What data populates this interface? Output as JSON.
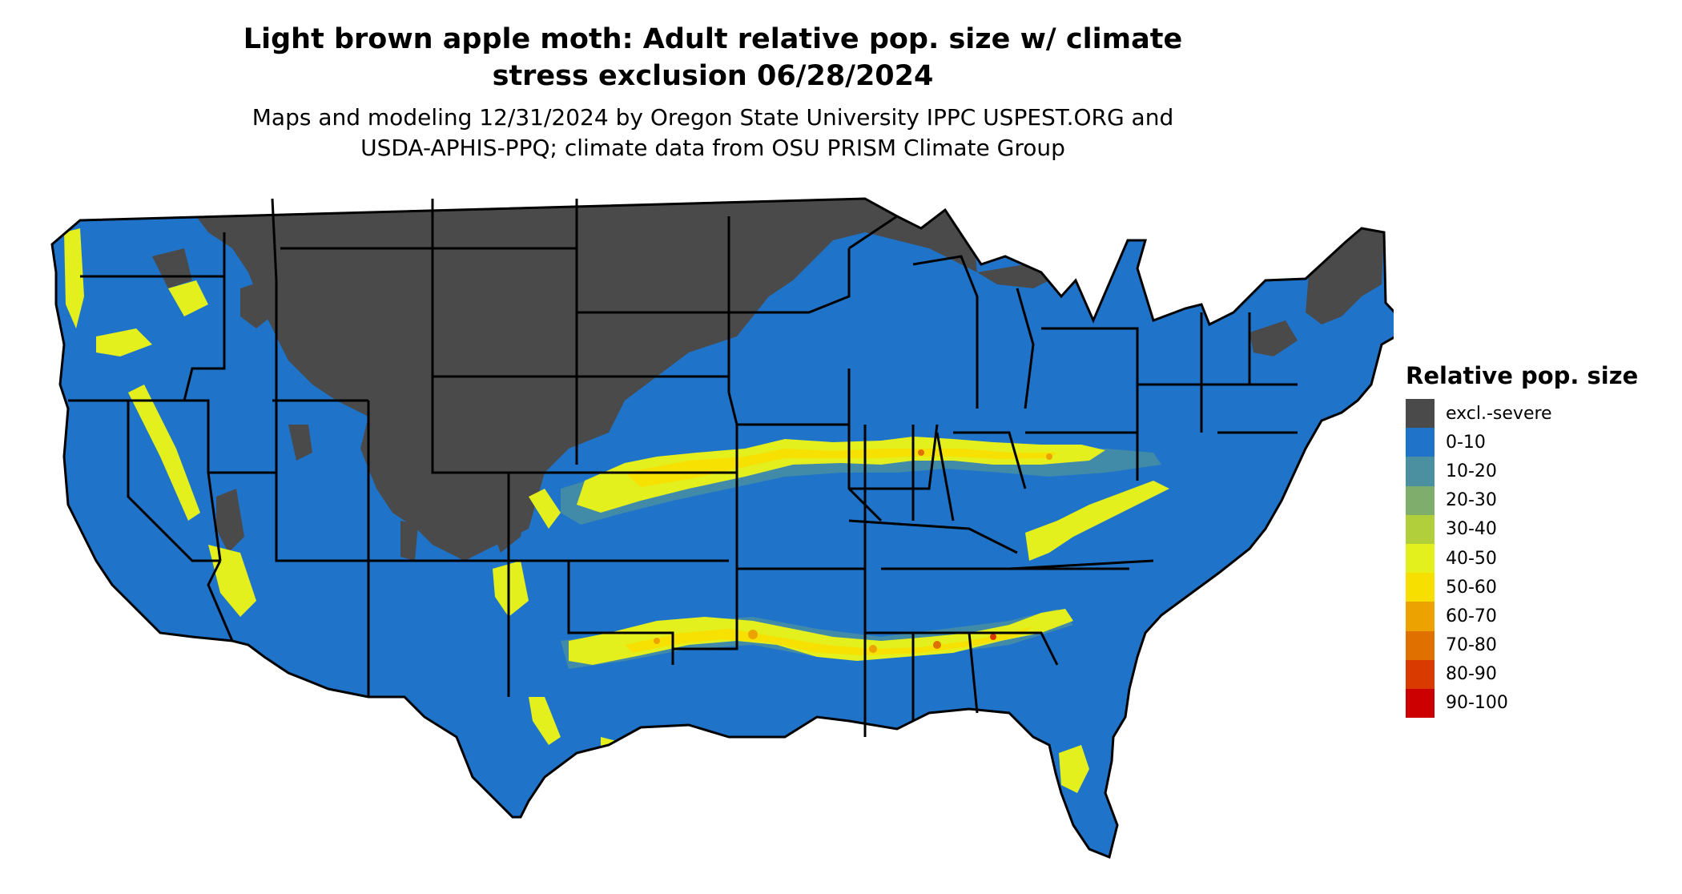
{
  "title_line1": "Light brown apple moth: Adult relative pop. size w/ climate",
  "title_line2": "stress exclusion 06/28/2024",
  "subtitle_line1": "Maps and modeling 12/31/2024 by Oregon State University IPPC USPEST.ORG and",
  "subtitle_line2": "USDA-APHIS-PPQ; climate data from OSU PRISM Climate Group",
  "legend": {
    "title": "Relative pop. size",
    "items": [
      {
        "label": "excl.-severe",
        "color": "#4a4a4a"
      },
      {
        "label": "0-10",
        "color": "#1f74c9"
      },
      {
        "label": "10-20",
        "color": "#4a90a0"
      },
      {
        "label": "20-30",
        "color": "#7fae6c"
      },
      {
        "label": "30-40",
        "color": "#b0cf3a"
      },
      {
        "label": "40-50",
        "color": "#e4ef1e"
      },
      {
        "label": "50-60",
        "color": "#f7df00"
      },
      {
        "label": "60-70",
        "color": "#eca200"
      },
      {
        "label": "70-80",
        "color": "#e07000"
      },
      {
        "label": "80-90",
        "color": "#d93a00"
      },
      {
        "label": "90-100",
        "color": "#cc0000"
      }
    ]
  },
  "map": {
    "region": "contiguous United States",
    "boundary_color": "#000000",
    "no_data_color": "#ffffff"
  }
}
